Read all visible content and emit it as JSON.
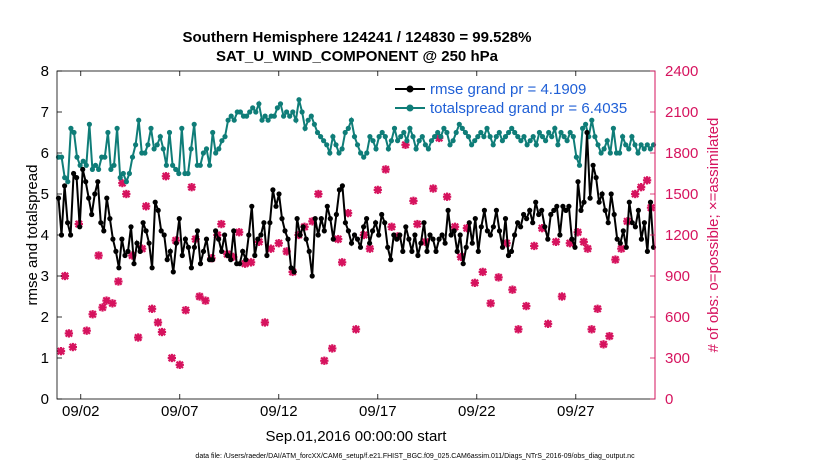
{
  "chart_data": {
    "type": "line",
    "title": "Southern Hemisphere 124241 / 124830 = 99.528%",
    "subtitle": "SAT_U_WIND_COMPONENT @ 250 hPa",
    "xlabel": "Sep.01,2016 00:00:00 start",
    "ylabel_left": "rmse and totalspread",
    "ylabel_right": "# of obs: o=possible; ×=assimilated",
    "footnote": "data file: /Users/raeder/DAI/ATM_forcXX/CAM6_setup/f.e21.FHIST_BGC.f09_025.CAM6assim.011/Diags_NTrS_2016-09/obs_diag_output.nc",
    "x_tick_labels": [
      "09/02",
      "09/07",
      "09/12",
      "09/17",
      "09/22",
      "09/27"
    ],
    "x_tick_days": [
      2,
      7,
      12,
      17,
      22,
      27
    ],
    "xlim_days": [
      0.8,
      31.0
    ],
    "ylim_left": [
      0,
      8
    ],
    "y_ticks_left": [
      "0",
      "1",
      "2",
      "3",
      "4",
      "5",
      "6",
      "7",
      "8"
    ],
    "ylim_right": [
      0,
      2400
    ],
    "y_ticks_right": [
      "0",
      "300",
      "600",
      "900",
      "1200",
      "1500",
      "1800",
      "2100",
      "2400"
    ],
    "colors": {
      "rmse": "#000000",
      "spread": "#0f7d78",
      "obs": "#d6135e",
      "legend_text": "#1f5fd6"
    },
    "series": [
      {
        "name": "rmse grand pr = 4.1909",
        "axis": "left",
        "values": [
          4.9,
          4.0,
          5.2,
          4.3,
          4.0,
          5.5,
          5.4,
          4.2,
          5.6,
          5.3,
          4.9,
          4.5,
          5.0,
          5.3,
          4.3,
          4.1,
          4.9,
          4.4,
          3.9,
          3.6,
          3.2,
          3.9,
          3.5,
          3.6,
          4.2,
          3.3,
          3.8,
          3.6,
          4.3,
          4.1,
          3.8,
          3.2,
          4.8,
          4.6,
          4.1,
          4.0,
          3.4,
          3.6,
          3.1,
          3.8,
          4.4,
          3.5,
          3.9,
          3.7,
          3.2,
          3.7,
          4.1,
          3.3,
          3.6,
          3.9,
          3.4,
          3.4,
          4.1,
          3.9,
          3.6,
          4.0,
          3.5,
          3.4,
          4.1,
          3.3,
          3.3,
          3.6,
          3.4,
          4.0,
          4.7,
          3.5,
          3.9,
          4.0,
          4.3,
          3.5,
          4.3,
          5.1,
          4.7,
          5.0,
          4.4,
          4.1,
          3.9,
          3.2,
          3.1,
          4.4,
          4.0,
          4.2,
          3.9,
          3.6,
          3.0,
          4.4,
          4.0,
          4.4,
          4.1,
          4.7,
          4.4,
          3.9,
          4.5,
          5.1,
          5.2,
          4.3,
          4.1,
          3.8,
          4.0,
          3.9,
          3.7,
          4.2,
          4.4,
          3.8,
          4.1,
          4.3,
          4.0,
          4.5,
          4.3,
          3.7,
          3.4,
          4.0,
          3.9,
          4.0,
          3.6,
          4.2,
          3.9,
          3.6,
          4.0,
          3.5,
          3.8,
          4.3,
          3.6,
          4.0,
          3.9,
          3.6,
          3.9,
          4.0,
          3.8,
          4.6,
          4.0,
          4.1,
          3.6,
          4.0,
          3.3,
          3.7,
          4.3,
          3.8,
          4.4,
          3.6,
          4.2,
          4.6,
          4.1,
          4.0,
          4.2,
          4.6,
          4.1,
          3.7,
          4.4,
          3.5,
          3.6,
          4.0,
          4.3,
          4.2,
          4.5,
          4.4,
          4.6,
          4.3,
          4.8,
          4.5,
          4.6,
          4.2,
          3.9,
          4.5,
          4.6,
          4.7,
          4.0,
          4.7,
          4.6,
          4.7,
          3.9,
          3.7,
          5.3,
          4.6,
          4.8,
          6.5,
          4.9,
          5.7,
          5.4,
          4.8,
          5.0,
          4.6,
          4.3,
          5.0,
          4.5,
          3.9,
          3.8,
          4.1,
          3.7,
          4.8,
          4.3,
          4.2,
          4.6,
          3.9,
          4.3,
          3.6,
          4.8,
          3.7
        ]
      },
      {
        "name": "totalspread grand pr = 6.4035",
        "axis": "left",
        "values": [
          5.9,
          5.9,
          5.4,
          5.3,
          6.6,
          6.5,
          5.9,
          5.7,
          5.8,
          5.7,
          6.7,
          5.6,
          5.7,
          5.6,
          5.9,
          5.9,
          6.5,
          5.6,
          5.7,
          6.6,
          5.4,
          5.5,
          5.3,
          5.5,
          5.9,
          6.2,
          6.8,
          6.0,
          6.0,
          6.2,
          6.6,
          6.1,
          6.2,
          6.4,
          6.1,
          5.7,
          6.5,
          5.7,
          5.6,
          5.5,
          6.6,
          5.5,
          5.5,
          6.1,
          6.7,
          5.7,
          5.7,
          6.0,
          6.1,
          5.7,
          6.5,
          6.0,
          6.1,
          6.3,
          6.4,
          6.8,
          6.9,
          6.8,
          7.0,
          7.0,
          6.9,
          6.9,
          7.0,
          7.1,
          7.0,
          7.2,
          6.8,
          6.9,
          6.8,
          6.9,
          6.9,
          7.1,
          7.2,
          6.9,
          7.0,
          6.9,
          7.0,
          6.8,
          7.3,
          7.0,
          6.6,
          6.8,
          6.9,
          6.7,
          6.5,
          6.4,
          6.3,
          6.2,
          6.0,
          6.4,
          6.2,
          6.0,
          6.1,
          6.5,
          6.6,
          6.8,
          6.4,
          6.2,
          6.0,
          5.9,
          6.0,
          6.4,
          6.3,
          6.1,
          6.4,
          6.5,
          6.4,
          6.1,
          6.3,
          6.6,
          6.3,
          6.4,
          6.5,
          6.3,
          6.6,
          6.4,
          6.1,
          6.3,
          6.4,
          6.2,
          6.1,
          6.3,
          6.4,
          6.5,
          6.4,
          6.6,
          6.5,
          6.2,
          6.3,
          6.5,
          6.7,
          6.6,
          6.5,
          6.4,
          6.2,
          6.3,
          6.4,
          6.5,
          6.4,
          6.6,
          6.4,
          6.2,
          6.4,
          6.5,
          6.3,
          6.4,
          6.5,
          6.6,
          6.5,
          6.4,
          6.3,
          6.4,
          6.2,
          6.3,
          6.4,
          6.2,
          6.5,
          6.4,
          6.3,
          6.5,
          6.4,
          6.6,
          6.2,
          6.5,
          6.4,
          6.3,
          6.5,
          6.4,
          5.9,
          5.7,
          6.6,
          6.7,
          6.4,
          6.8,
          6.4,
          6.2,
          6.0,
          6.1,
          6.3,
          6.0,
          6.6,
          6.0,
          6.0,
          6.4,
          6.2,
          6.1,
          6.4,
          6.2,
          6.0,
          6.2,
          6.1,
          6.2,
          6.1,
          6.2
        ]
      },
      {
        "name": "obs assimilated",
        "axis": "right",
        "marker": "x",
        "x_days": [
          1.0,
          1.2,
          1.4,
          1.6,
          1.9,
          2.3,
          2.6,
          2.9,
          3.1,
          3.3,
          3.6,
          3.9,
          4.1,
          4.3,
          4.6,
          4.9,
          5.1,
          5.3,
          5.6,
          5.9,
          6.1,
          6.3,
          6.6,
          6.8,
          7.0,
          7.3,
          7.6,
          7.8,
          8.0,
          8.3,
          8.6,
          8.9,
          9.1,
          9.4,
          9.7,
          10.0,
          10.3,
          10.6,
          11.0,
          11.3,
          11.6,
          12.0,
          12.4,
          12.7,
          13.0,
          13.3,
          13.7,
          14.0,
          14.3,
          14.7,
          15.0,
          15.2,
          15.5,
          15.9,
          16.3,
          16.6,
          17.0,
          17.4,
          17.7,
          18.0,
          18.4,
          18.8,
          19.0,
          19.4,
          19.8,
          20.1,
          20.5,
          20.9,
          21.2,
          21.5,
          21.9,
          22.3,
          22.7,
          23.1,
          23.5,
          23.8,
          24.1,
          24.5,
          24.9,
          25.3,
          25.6,
          26.0,
          26.3,
          26.7,
          27.1,
          27.4,
          27.6,
          27.8,
          28.1,
          28.4,
          28.7,
          29.0,
          29.3,
          29.6,
          30.0,
          30.3,
          30.6,
          30.8
        ],
        "values": [
          350,
          900,
          480,
          380,
          1280,
          500,
          620,
          1050,
          670,
          720,
          700,
          860,
          1580,
          1500,
          1050,
          450,
          1100,
          1410,
          660,
          560,
          490,
          1630,
          300,
          1160,
          250,
          650,
          1550,
          1170,
          750,
          720,
          1030,
          1200,
          1280,
          1060,
          1040,
          1220,
          990,
          1000,
          1150,
          560,
          1100,
          1140,
          1080,
          930,
          1200,
          1260,
          1300,
          1500,
          280,
          370,
          1170,
          1000,
          1360,
          510,
          1200,
          1100,
          1530,
          1680,
          1260,
          1190,
          1860,
          1450,
          1280,
          1150,
          1540,
          1910,
          1480,
          1260,
          1040,
          1250,
          850,
          930,
          700,
          890,
          1140,
          800,
          510,
          680,
          1120,
          1250,
          550,
          1150,
          750,
          1140,
          1220,
          1150,
          1100,
          510,
          660,
          400,
          460,
          1020,
          1100,
          1300,
          1500,
          1550,
          1600,
          1400
        ]
      }
    ]
  }
}
